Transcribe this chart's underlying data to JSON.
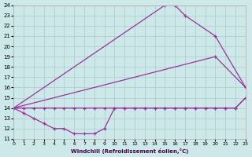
{
  "xlabel": "Windchill (Refroidissement éolien,°C)",
  "xlim": [
    0,
    23
  ],
  "ylim": [
    11,
    24
  ],
  "xticks": [
    0,
    1,
    2,
    3,
    4,
    5,
    6,
    7,
    8,
    9,
    10,
    11,
    12,
    13,
    14,
    15,
    16,
    17,
    18,
    19,
    20,
    21,
    22,
    23
  ],
  "yticks": [
    11,
    12,
    13,
    14,
    15,
    16,
    17,
    18,
    19,
    20,
    21,
    22,
    23,
    24
  ],
  "bg_color": "#cce8e8",
  "line_color": "#993399",
  "grid_color": "#aacccc",
  "lines": [
    {
      "x": [
        0,
        1,
        2,
        3,
        4,
        5,
        6,
        7,
        8,
        9,
        10,
        11,
        12,
        13,
        14,
        15,
        16,
        17,
        18,
        19,
        20,
        21,
        22,
        23
      ],
      "y": [
        14,
        14,
        14,
        14,
        14,
        14,
        14,
        14,
        14,
        14,
        14,
        14,
        14,
        14,
        14,
        14,
        14,
        14,
        14,
        14,
        14,
        14,
        14,
        15
      ]
    },
    {
      "x": [
        0,
        1,
        2,
        3,
        4,
        5,
        6,
        7,
        8,
        9,
        10,
        11,
        12,
        13,
        14,
        15,
        16,
        17,
        18,
        19,
        20,
        21,
        22,
        23
      ],
      "y": [
        14,
        13.5,
        13,
        12.5,
        12,
        12,
        11.5,
        11.5,
        11.5,
        12,
        14,
        14,
        14,
        14,
        14,
        14,
        14,
        14,
        14,
        14,
        14,
        14,
        14,
        15
      ]
    },
    {
      "x": [
        0,
        15,
        16,
        17,
        20,
        23
      ],
      "y": [
        14,
        24,
        24,
        23,
        21,
        16
      ]
    },
    {
      "x": [
        0,
        20,
        23
      ],
      "y": [
        14,
        19,
        16
      ]
    }
  ]
}
